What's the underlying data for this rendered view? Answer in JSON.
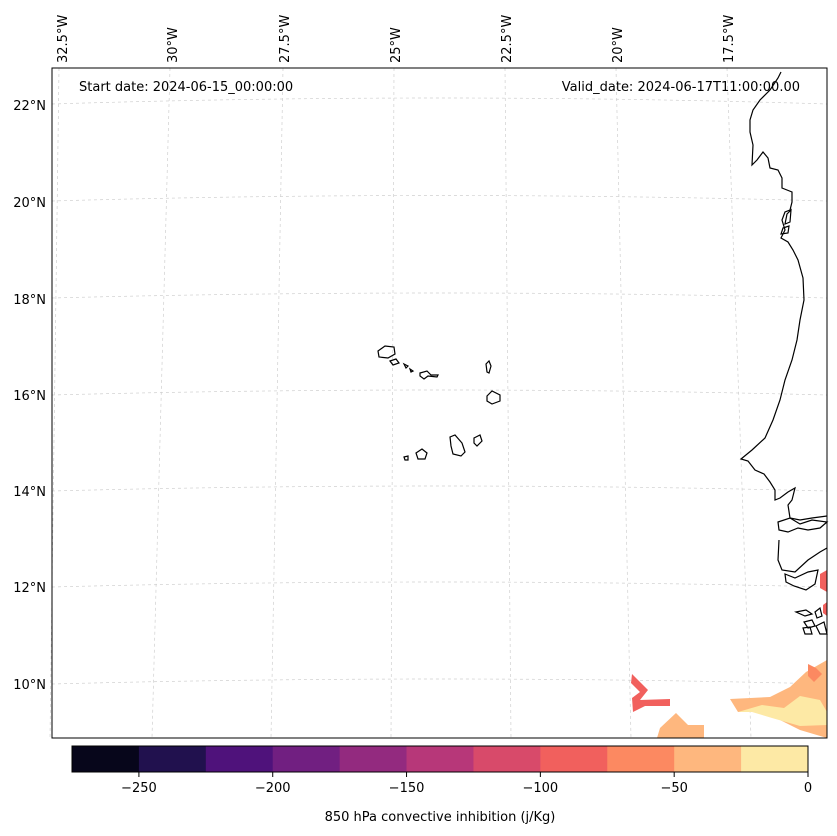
{
  "header": {
    "start_date": "Start date: 2024-06-15_00:00:00",
    "valid_date": "Valid_date: 2024-06-17T11:00:00.00"
  },
  "map": {
    "lon_labels": [
      "32.5°W",
      "30°W",
      "27.5°W",
      "25°W",
      "22.5°W",
      "20°W",
      "17.5°W"
    ],
    "lat_labels": [
      "22°N",
      "20°N",
      "18°N",
      "16°N",
      "14°N",
      "12°N",
      "10°N"
    ],
    "gridlines": true,
    "coastline_color": "#000000",
    "islands": [
      "Santo Antão",
      "São Vicente",
      "Santa Luzia",
      "São Nicolau",
      "Sal",
      "Boa Vista",
      "Maio",
      "Santiago",
      "Fogo",
      "Brava"
    ]
  },
  "colorbar": {
    "label": "850 hPa convective inhibition (j/Kg)",
    "ticks": [
      "−250",
      "−200",
      "−150",
      "−100",
      "−50",
      "0"
    ],
    "range": [
      -275,
      0
    ],
    "levels": [
      -275,
      -250,
      -225,
      -200,
      -175,
      -150,
      -125,
      -100,
      -75,
      -50,
      -25,
      0
    ],
    "colors": [
      "#07061b",
      "#21114e",
      "#4f127b",
      "#711f81",
      "#932a7f",
      "#b73779",
      "#d84a6a",
      "#f1605d",
      "#fc8961",
      "#feb77e",
      "#fde9a5"
    ]
  }
}
